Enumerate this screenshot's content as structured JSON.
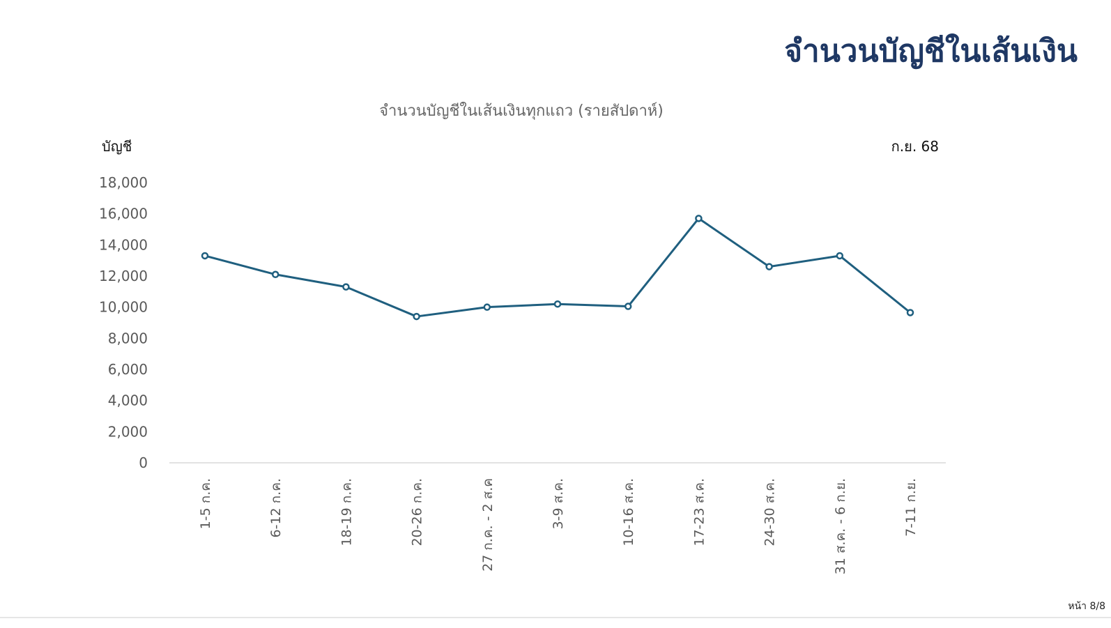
{
  "slide": {
    "title": "จำนวนบัญชีในเส้นเงิน",
    "page_number": "หน้า 8/8"
  },
  "chart_data": {
    "type": "line",
    "title": "จำนวนบัญชีในเส้นเงินทุกแถว (รายสัปดาห์)",
    "ylabel": "บัญชี",
    "note": "ก.ย. 68",
    "xlabel": "",
    "ylim": [
      0,
      18000
    ],
    "yticks": [
      0,
      2000,
      4000,
      6000,
      8000,
      10000,
      12000,
      14000,
      16000,
      18000
    ],
    "ytick_labels": [
      "0",
      "2,000",
      "4,000",
      "6,000",
      "8,000",
      "10,000",
      "12,000",
      "14,000",
      "16,000",
      "18,000"
    ],
    "categories": [
      "1-5 ก.ค.",
      "6-12 ก.ค.",
      "18-19 ก.ค.",
      "20-26 ก.ค.",
      "27 ก.ค. - 2 ส.ค",
      "3-9 ส.ค.",
      "10-16 ส.ค.",
      "17-23 ส.ค.",
      "24-30 ส.ค.",
      "31 ส.ค. - 6 ก.ย.",
      "7-11 ก.ย."
    ],
    "series": [
      {
        "name": "จำนวนบัญชี",
        "color": "#1f5f7f",
        "values": [
          13300,
          12100,
          11300,
          9400,
          10000,
          10200,
          10050,
          15700,
          12600,
          13300,
          9650
        ]
      }
    ],
    "grid": false,
    "legend": "none"
  }
}
